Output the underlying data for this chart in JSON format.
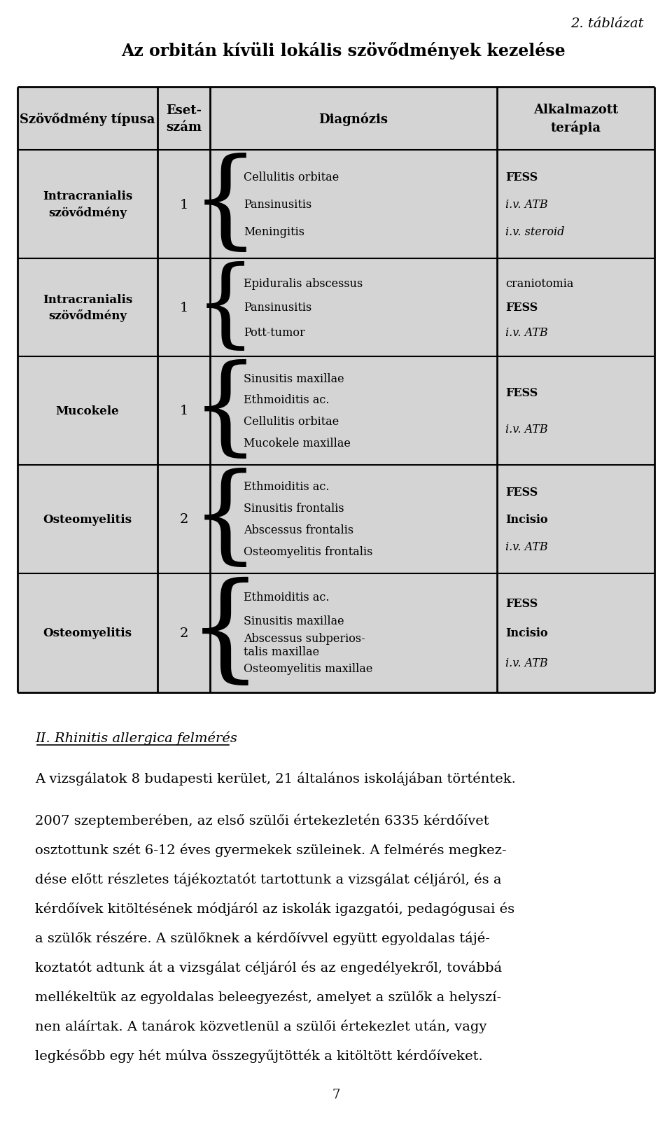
{
  "page_title_right": "2. táblázat",
  "table_title": "Az orbitán kívüli lokális szövődmények kezelése",
  "headers": [
    "Szövődmény típusa",
    "Eset-\nszám",
    "Diagnózis",
    "Alkalmazott\nterápia"
  ],
  "rows": [
    {
      "col0": "Intracranialis\nszövődmény",
      "col1": "1",
      "diagnoses": [
        "Cellulitis orbitae",
        "Pansinusitis",
        "Meningitis"
      ],
      "therapy_lines": [
        {
          "text": "FESS",
          "bold": true,
          "italic": false
        },
        {
          "text": "i.v. ATB",
          "bold": false,
          "italic": true
        },
        {
          "text": "i.v. steroid",
          "bold": false,
          "italic": true
        }
      ]
    },
    {
      "col0": "Intracranialis\nszövődmény",
      "col1": "1",
      "diagnoses": [
        "Epiduralis abscessus",
        "Pansinusitis",
        "Pott-tumor"
      ],
      "therapy_lines": [
        {
          "text": "craniotomia",
          "bold": false,
          "italic": false
        },
        {
          "text": "FESS",
          "bold": true,
          "italic": false
        },
        {
          "text": "i.v. ATB",
          "bold": false,
          "italic": true
        }
      ]
    },
    {
      "col0": "Mucokele",
      "col1": "1",
      "diagnoses": [
        "Sinusitis maxillae",
        "Ethmoiditis ac.",
        "Cellulitis orbitae",
        "Mucokele maxillae"
      ],
      "therapy_lines": [
        {
          "text": "FESS",
          "bold": true,
          "italic": false
        },
        {
          "text": "i.v. ATB",
          "bold": false,
          "italic": true
        }
      ]
    },
    {
      "col0": "Osteomyelitis",
      "col1": "2",
      "diagnoses": [
        "Ethmoiditis ac.",
        "Sinusitis frontalis",
        "Abscessus frontalis",
        "Osteomyelitis frontalis"
      ],
      "therapy_lines": [
        {
          "text": "FESS",
          "bold": true,
          "italic": false
        },
        {
          "text": "Incisio",
          "bold": true,
          "italic": false
        },
        {
          "text": "i.v. ATB",
          "bold": false,
          "italic": true
        }
      ]
    },
    {
      "col0": "Osteomyelitis",
      "col1": "2",
      "diagnoses": [
        "Ethmoiditis ac.",
        "Sinusitis maxillae",
        "Abscessus subperios-\ntalis maxillae",
        "Osteomyelitis maxillae"
      ],
      "therapy_lines": [
        {
          "text": "FESS",
          "bold": true,
          "italic": false
        },
        {
          "text": "Incisio",
          "bold": true,
          "italic": false
        },
        {
          "text": "i.v. ATB",
          "bold": false,
          "italic": true
        }
      ]
    }
  ],
  "section_heading": "II. Rhinitis allergica felmérés",
  "para1": "A vizsgálatok 8 budapesti kerület, 21 általános iskolájában történtek.",
  "para2_lines": [
    "2007 szeptemberében, az első szülői értekezletén 6335 kérdőívet",
    "osztottunk szét 6-12 éves gyermekek szüleinek. A felmérés megkez-",
    "dése előtt részletes tájékoztatót tartottunk a vizsgálat céljáról, és a",
    "kérdőívek kitöltésének módjáról az iskolák igazgatói, pedagógusai és",
    "a szülők részére. A szülőknek a kérdőívvel együtt egyoldalas tájé-",
    "koztatót adtunk át a vizsgálat céljáról és az engedélyekről, továbbá",
    "mellékeltük az egyoldalas beleegyezést, amelyet a szülők a helyszí-",
    "nen aláírtak. A tanárok közvetlenül a szülői értekezlet után, vagy",
    "legkésőbb egy hét múlva összegyűjtötték a kitöltött kérdőíveket."
  ],
  "page_number": "7",
  "bg_color": "#d4d4d4",
  "border_color": "#000000",
  "white": "#ffffff"
}
